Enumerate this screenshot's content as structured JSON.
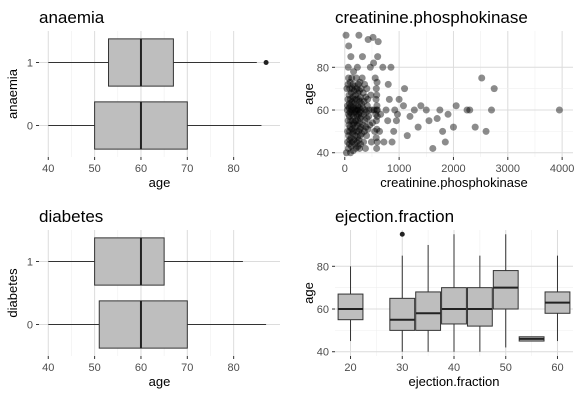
{
  "chart_data": [
    {
      "type": "boxplot",
      "title": "anaemia",
      "xlabel": "age",
      "ylabel": "anaemia",
      "xlim": [
        38,
        90
      ],
      "xticks": [
        40,
        50,
        60,
        70,
        80
      ],
      "categories": [
        "0",
        "1"
      ],
      "boxes": [
        {
          "category": "0",
          "whisker_low": 40,
          "q1": 50,
          "median": 60,
          "q3": 70,
          "whisker_high": 86,
          "outliers": []
        },
        {
          "category": "1",
          "whisker_low": 40,
          "q1": 53,
          "median": 60,
          "q3": 67,
          "whisker_high": 85,
          "outliers": [
            87
          ]
        }
      ],
      "colors": {
        "fill": "#bebebe",
        "line": "#333333"
      },
      "grid": true
    },
    {
      "type": "scatter",
      "title": "creatinine.phosphokinase",
      "xlabel": "creatinine.phosphokinase",
      "ylabel": "age",
      "xlim": [
        -180,
        4200
      ],
      "ylim": [
        38,
        97
      ],
      "xticks": [
        0,
        1000,
        2000,
        3000,
        4000
      ],
      "yticks": [
        40,
        60,
        80
      ],
      "points": [
        [
          23,
          95
        ],
        [
          30,
          40
        ],
        [
          40,
          70
        ],
        [
          47,
          60
        ],
        [
          50,
          62
        ],
        [
          52,
          50
        ],
        [
          54,
          45
        ],
        [
          58,
          65
        ],
        [
          60,
          72
        ],
        [
          62,
          55
        ],
        [
          64,
          80
        ],
        [
          66,
          42
        ],
        [
          68,
          58
        ],
        [
          69,
          75
        ],
        [
          70,
          48
        ],
        [
          72,
          90
        ],
        [
          75,
          53
        ],
        [
          78,
          61
        ],
        [
          80,
          67
        ],
        [
          82,
          44
        ],
        [
          84,
          57
        ],
        [
          86,
          63
        ],
        [
          88,
          50
        ],
        [
          90,
          70
        ],
        [
          92,
          46
        ],
        [
          95,
          59
        ],
        [
          98,
          73
        ],
        [
          100,
          52
        ],
        [
          102,
          65
        ],
        [
          105,
          40
        ],
        [
          108,
          55
        ],
        [
          110,
          62
        ],
        [
          112,
          85
        ],
        [
          115,
          47
        ],
        [
          118,
          60
        ],
        [
          120,
          68
        ],
        [
          122,
          43
        ],
        [
          125,
          58
        ],
        [
          128,
          75
        ],
        [
          130,
          51
        ],
        [
          132,
          64
        ],
        [
          135,
          45
        ],
        [
          138,
          70
        ],
        [
          140,
          55
        ],
        [
          142,
          60
        ],
        [
          145,
          49
        ],
        [
          148,
          66
        ],
        [
          150,
          53
        ],
        [
          152,
          72
        ],
        [
          155,
          41
        ],
        [
          158,
          61
        ],
        [
          160,
          57
        ],
        [
          162,
          78
        ],
        [
          165,
          50
        ],
        [
          168,
          63
        ],
        [
          170,
          46
        ],
        [
          172,
          69
        ],
        [
          175,
          54
        ],
        [
          178,
          59
        ],
        [
          180,
          65
        ],
        [
          182,
          44
        ],
        [
          185,
          71
        ],
        [
          188,
          52
        ],
        [
          190,
          60
        ],
        [
          192,
          48
        ],
        [
          195,
          67
        ],
        [
          198,
          55
        ],
        [
          200,
          62
        ],
        [
          205,
          42
        ],
        [
          210,
          58
        ],
        [
          212,
          75
        ],
        [
          215,
          50
        ],
        [
          218,
          65
        ],
        [
          220,
          45
        ],
        [
          222,
          60
        ],
        [
          225,
          70
        ],
        [
          228,
          53
        ],
        [
          230,
          57
        ],
        [
          232,
          80
        ],
        [
          235,
          47
        ],
        [
          238,
          62
        ],
        [
          240,
          55
        ],
        [
          242,
          68
        ],
        [
          245,
          43
        ],
        [
          248,
          60
        ],
        [
          250,
          72
        ],
        [
          252,
          50
        ],
        [
          255,
          58
        ],
        [
          258,
          65
        ],
        [
          260,
          95
        ],
        [
          262,
          46
        ],
        [
          265,
          61
        ],
        [
          268,
          54
        ],
        [
          270,
          69
        ],
        [
          272,
          42
        ],
        [
          275,
          59
        ],
        [
          278,
          73
        ],
        [
          280,
          51
        ],
        [
          282,
          64
        ],
        [
          285,
          48
        ],
        [
          288,
          56
        ],
        [
          290,
          66
        ],
        [
          292,
          44
        ],
        [
          295,
          60
        ],
        [
          298,
          52
        ],
        [
          300,
          70
        ],
        [
          305,
          57
        ],
        [
          310,
          63
        ],
        [
          315,
          49
        ],
        [
          320,
          75
        ],
        [
          325,
          85
        ],
        [
          330,
          61
        ],
        [
          335,
          53
        ],
        [
          340,
          68
        ],
        [
          345,
          45
        ],
        [
          350,
          58
        ],
        [
          355,
          64
        ],
        [
          360,
          50
        ],
        [
          365,
          72
        ],
        [
          370,
          55
        ],
        [
          375,
          60
        ],
        [
          380,
          42
        ],
        [
          385,
          66
        ],
        [
          390,
          52
        ],
        [
          395,
          59
        ],
        [
          400,
          48
        ],
        [
          405,
          70
        ],
        [
          410,
          56
        ],
        [
          415,
          62
        ],
        [
          420,
          65
        ],
        [
          425,
          51
        ],
        [
          430,
          93
        ],
        [
          440,
          57
        ],
        [
          450,
          60
        ],
        [
          460,
          53
        ],
        [
          470,
          80
        ],
        [
          480,
          67
        ],
        [
          490,
          45
        ],
        [
          500,
          60
        ],
        [
          510,
          54
        ],
        [
          520,
          94
        ],
        [
          530,
          82
        ],
        [
          540,
          60
        ],
        [
          550,
          50
        ],
        [
          560,
          75
        ],
        [
          570,
          58
        ],
        [
          575,
          65
        ],
        [
          578,
          47
        ],
        [
          580,
          70
        ],
        [
          582,
          55
        ],
        [
          584,
          60
        ],
        [
          586,
          42
        ],
        [
          588,
          67
        ],
        [
          590,
          51
        ],
        [
          592,
          62
        ],
        [
          594,
          73
        ],
        [
          596,
          45
        ],
        [
          598,
          57
        ],
        [
          600,
          60
        ],
        [
          605,
          85
        ],
        [
          615,
          92
        ],
        [
          640,
          50
        ],
        [
          660,
          58
        ],
        [
          700,
          80
        ],
        [
          720,
          45
        ],
        [
          760,
          60
        ],
        [
          790,
          55
        ],
        [
          800,
          72
        ],
        [
          820,
          65
        ],
        [
          850,
          80
        ],
        [
          870,
          45
        ],
        [
          900,
          50
        ],
        [
          920,
          60
        ],
        [
          950,
          55
        ],
        [
          970,
          58
        ],
        [
          1000,
          65
        ],
        [
          1080,
          62
        ],
        [
          1100,
          70
        ],
        [
          1150,
          48
        ],
        [
          1200,
          57
        ],
        [
          1280,
          60
        ],
        [
          1350,
          52
        ],
        [
          1400,
          62
        ],
        [
          1500,
          60
        ],
        [
          1550,
          55
        ],
        [
          1620,
          42
        ],
        [
          1700,
          56
        ],
        [
          1750,
          60
        ],
        [
          1800,
          50
        ],
        [
          1850,
          45
        ],
        [
          1900,
          58
        ],
        [
          2000,
          52
        ],
        [
          2050,
          62
        ],
        [
          2250,
          60
        ],
        [
          2300,
          60
        ],
        [
          2400,
          52
        ],
        [
          2520,
          75
        ],
        [
          2600,
          50
        ],
        [
          2700,
          60
        ],
        [
          2750,
          70
        ],
        [
          3950,
          60
        ]
      ],
      "colors": {
        "point": "#000000"
      },
      "grid": true
    },
    {
      "type": "boxplot",
      "title": "diabetes",
      "xlabel": "age",
      "ylabel": "diabetes",
      "xlim": [
        38,
        90
      ],
      "xticks": [
        40,
        50,
        60,
        70,
        80
      ],
      "categories": [
        "0",
        "1"
      ],
      "boxes": [
        {
          "category": "0",
          "whisker_low": 40,
          "q1": 51,
          "median": 60,
          "q3": 70,
          "whisker_high": 87,
          "outliers": []
        },
        {
          "category": "1",
          "whisker_low": 40,
          "q1": 50,
          "median": 60,
          "q3": 65,
          "whisker_high": 82,
          "outliers": []
        }
      ],
      "colors": {
        "fill": "#bebebe",
        "line": "#333333"
      },
      "grid": true
    },
    {
      "type": "boxplot",
      "title": "ejection.fraction",
      "xlabel": "ejection.fraction",
      "ylabel": "age",
      "xlim": [
        17,
        63
      ],
      "ylim": [
        38,
        97
      ],
      "xticks": [
        20,
        30,
        40,
        50,
        60
      ],
      "yticks": [
        40,
        60,
        80
      ],
      "boxes": [
        {
          "x": 20,
          "whisker_low": 45,
          "q1": 55,
          "median": 60,
          "q3": 67,
          "whisker_high": 80,
          "outliers": []
        },
        {
          "x": 30,
          "whisker_low": 40,
          "q1": 50,
          "median": 55,
          "q3": 65,
          "whisker_high": 85,
          "outliers": [
            95
          ]
        },
        {
          "x": 35,
          "whisker_low": 40,
          "q1": 50,
          "median": 58,
          "q3": 68,
          "whisker_high": 90,
          "outliers": []
        },
        {
          "x": 40,
          "whisker_low": 40,
          "q1": 53,
          "median": 60,
          "q3": 70,
          "whisker_high": 95,
          "outliers": []
        },
        {
          "x": 45,
          "whisker_low": 40,
          "q1": 52,
          "median": 60,
          "q3": 70,
          "whisker_high": 85,
          "outliers": []
        },
        {
          "x": 50,
          "whisker_low": 42,
          "q1": 60,
          "median": 70,
          "q3": 78,
          "whisker_high": 95,
          "outliers": []
        },
        {
          "x": 55,
          "whisker_low": 45,
          "q1": 45,
          "median": 46,
          "q3": 47,
          "whisker_high": 47,
          "outliers": []
        },
        {
          "x": 60,
          "whisker_low": 45,
          "q1": 58,
          "median": 63,
          "q3": 68,
          "whisker_high": 85,
          "outliers": []
        }
      ],
      "colors": {
        "fill": "#bebebe",
        "line": "#333333"
      },
      "grid": true
    }
  ]
}
